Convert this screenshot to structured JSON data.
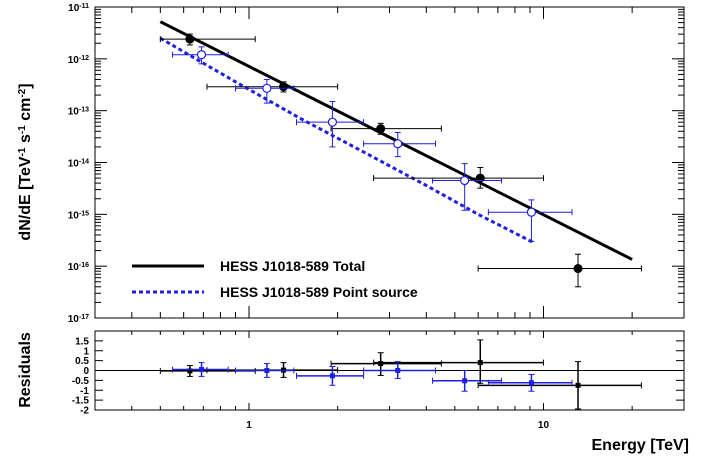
{
  "chart_data": [
    {
      "type": "scatter",
      "panel": "spectrum",
      "xlabel": "Energy [TeV]",
      "ylabel_parts": {
        "a": "dN/dE [TeV",
        "b": "-1",
        "c": " s",
        "d": "-1",
        "e": " cm",
        "f": "-2",
        "g": "]"
      },
      "x_scale": "log",
      "y_scale": "log",
      "xlim": [
        0.3,
        30
      ],
      "ylim": [
        1e-17,
        1e-11
      ],
      "yticks": [
        {
          "value": 1e-11,
          "base": "10",
          "exp": "-11"
        },
        {
          "value": 1e-12,
          "base": "10",
          "exp": "-12"
        },
        {
          "value": 1e-13,
          "base": "10",
          "exp": "-13"
        },
        {
          "value": 1e-14,
          "base": "10",
          "exp": "-14"
        },
        {
          "value": 1e-15,
          "base": "10",
          "exp": "-15"
        },
        {
          "value": 1e-16,
          "base": "10",
          "exp": "-16"
        },
        {
          "value": 1e-17,
          "base": "10",
          "exp": "-17"
        }
      ],
      "legend_position": "bottom-left",
      "series": [
        {
          "name": "HESS J1018-589 Total",
          "kind": "line",
          "style": "solid",
          "color": "#000000",
          "x": [
            0.5,
            20
          ],
          "y": [
            5.2e-12,
            1.35e-16
          ]
        },
        {
          "name": "HESS J1018-589 Point source",
          "kind": "line",
          "style": "dashed",
          "color": "#1f1fe0",
          "x": [
            0.5,
            0.9,
            1.5,
            2.5,
            4,
            6,
            9.2
          ],
          "y": [
            2.5e-12,
            3.6e-13,
            7e-14,
            1.5e-14,
            3.6e-15,
            1e-15,
            2.9e-16
          ]
        },
        {
          "kind": "points",
          "marker": "filled-circle",
          "color": "#000000",
          "x": [
            0.63,
            1.31,
            2.8,
            6.1,
            13.1
          ],
          "y": [
            2.4e-12,
            2.9e-13,
            4.5e-14,
            5e-15,
            9e-17
          ],
          "x_lo": [
            0.5,
            0.72,
            1.9,
            2.65,
            6.0
          ],
          "x_hi": [
            1.05,
            2.0,
            4.5,
            10.0,
            21.5
          ],
          "y_lo": [
            1.85e-12,
            2.3e-13,
            3.5e-14,
            3.2e-15,
            4e-17
          ],
          "y_hi": [
            3e-12,
            3.6e-13,
            5.7e-14,
            8e-15,
            1.7e-16
          ]
        },
        {
          "kind": "points",
          "marker": "open-circle",
          "color": "#1f1fe0",
          "x": [
            0.69,
            1.15,
            1.92,
            3.2,
            5.4,
            9.1
          ],
          "y": [
            1.2e-12,
            2.7e-13,
            6e-14,
            2.3e-14,
            4.5e-15,
            1.1e-15
          ],
          "x_lo": [
            0.55,
            0.9,
            1.45,
            2.45,
            4.2,
            6.5
          ],
          "x_hi": [
            0.85,
            1.42,
            2.45,
            4.3,
            7.2,
            12.5
          ],
          "y_lo": [
            8e-13,
            1.4e-13,
            2e-14,
            1.3e-14,
            1.2e-15,
            3e-16
          ],
          "y_hi": [
            1.7e-12,
            4e-13,
            1.5e-13,
            3.8e-14,
            9.5e-15,
            1.9e-15
          ]
        }
      ]
    },
    {
      "type": "scatter",
      "panel": "residuals",
      "ylabel": "Residuals",
      "x_scale": "log",
      "xlim": [
        0.3,
        30
      ],
      "ylim": [
        -2,
        2
      ],
      "yticks": [
        {
          "value": 1.5,
          "label": "1.5"
        },
        {
          "value": 1,
          "label": "1"
        },
        {
          "value": 0.5,
          "label": "0.5"
        },
        {
          "value": 0,
          "label": "0"
        },
        {
          "value": -0.5,
          "label": "-0.5"
        },
        {
          "value": -1,
          "label": "-1"
        },
        {
          "value": -1.5,
          "label": "-1.5"
        },
        {
          "value": -2,
          "label": "-2"
        }
      ],
      "xticks": [
        {
          "value": 1,
          "label": "1"
        },
        {
          "value": 10,
          "label": "10"
        }
      ],
      "zero_line": true,
      "series": [
        {
          "kind": "points",
          "marker": "filled-square",
          "color": "#000000",
          "x": [
            0.63,
            1.31,
            2.8,
            6.1,
            13.1
          ],
          "y": [
            -0.02,
            0.02,
            0.35,
            0.4,
            -0.75
          ],
          "x_lo": [
            0.5,
            0.72,
            1.9,
            2.65,
            6.0
          ],
          "x_hi": [
            1.05,
            2.0,
            4.5,
            10.0,
            21.5
          ],
          "y_lo": [
            -0.3,
            -0.35,
            -0.25,
            -0.65,
            -1.95
          ],
          "y_hi": [
            0.25,
            0.4,
            0.9,
            1.55,
            0.45
          ]
        },
        {
          "kind": "points",
          "marker": "filled-square",
          "color": "#1f1fe0",
          "x": [
            0.69,
            1.15,
            1.92,
            3.2,
            5.4,
            9.1
          ],
          "y": [
            0.05,
            0.0,
            -0.27,
            0.0,
            -0.52,
            -0.62
          ],
          "x_lo": [
            0.55,
            0.9,
            1.45,
            2.45,
            4.2,
            6.5
          ],
          "x_hi": [
            0.85,
            1.42,
            2.45,
            4.3,
            7.2,
            12.5
          ],
          "y_lo": [
            -0.3,
            -0.35,
            -0.75,
            -0.4,
            -1.05,
            -1.05
          ],
          "y_hi": [
            0.4,
            0.35,
            0.2,
            0.45,
            0.0,
            -0.2
          ]
        }
      ]
    }
  ]
}
